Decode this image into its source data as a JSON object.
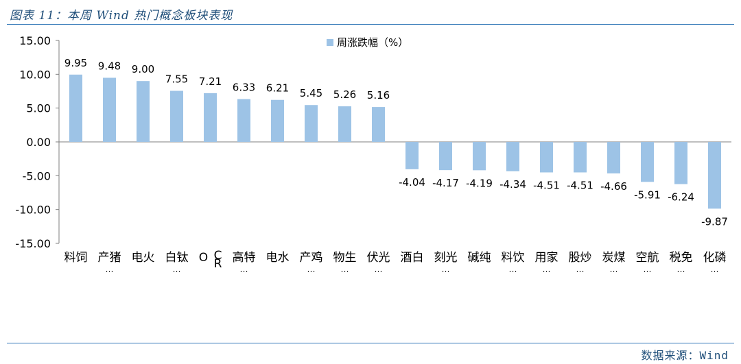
{
  "figure": {
    "title": "图表 11：本周 Wind 热门概念板块表现",
    "source": "数据来源：Wind"
  },
  "chart_data": {
    "type": "bar",
    "legend": {
      "label": "周涨跌幅（%）",
      "placement": "top-center"
    },
    "ylim": [
      -15,
      15
    ],
    "yticks": [
      15,
      10,
      5,
      0,
      -5,
      -10,
      -15
    ],
    "ytick_labels": [
      "15.00",
      "10.00",
      "5.00",
      "0.00",
      "-5.00",
      "-10.00",
      "-15.00"
    ],
    "grid": false,
    "bar_color": "#9dc3e6",
    "categories": [
      [
        "料饲"
      ],
      [
        "产猪",
        "…"
      ],
      [
        "电火"
      ],
      [
        "白钛",
        "…"
      ],
      [
        "O",
        "C",
        "R"
      ],
      [
        "高特",
        "…"
      ],
      [
        "电水"
      ],
      [
        "产鸡",
        "…"
      ],
      [
        "物生",
        "…"
      ],
      [
        "伏光",
        "…"
      ],
      [
        "酒白"
      ],
      [
        "刻光",
        "…"
      ],
      [
        "碱纯"
      ],
      [
        "料饮",
        "…"
      ],
      [
        "用家",
        "…"
      ],
      [
        "股炒",
        "…"
      ],
      [
        "炭煤",
        "…"
      ],
      [
        "空航",
        "…"
      ],
      [
        "税免",
        "…"
      ],
      [
        "化磷",
        "…"
      ]
    ],
    "values": [
      9.95,
      9.48,
      9.0,
      7.55,
      7.21,
      6.33,
      6.21,
      5.45,
      5.26,
      5.16,
      -4.04,
      -4.17,
      -4.19,
      -4.34,
      -4.51,
      -4.51,
      -4.66,
      -5.91,
      -6.24,
      -9.87
    ],
    "value_labels": [
      "9.95",
      "9.48",
      "9.00",
      "7.55",
      "7.21",
      "6.33",
      "6.21",
      "5.45",
      "5.26",
      "5.16",
      "-4.04",
      "-4.17",
      "-4.19",
      "-4.34",
      "-4.51",
      "-4.51",
      "-4.66",
      "-5.91",
      "-6.24",
      "-9.87"
    ]
  }
}
